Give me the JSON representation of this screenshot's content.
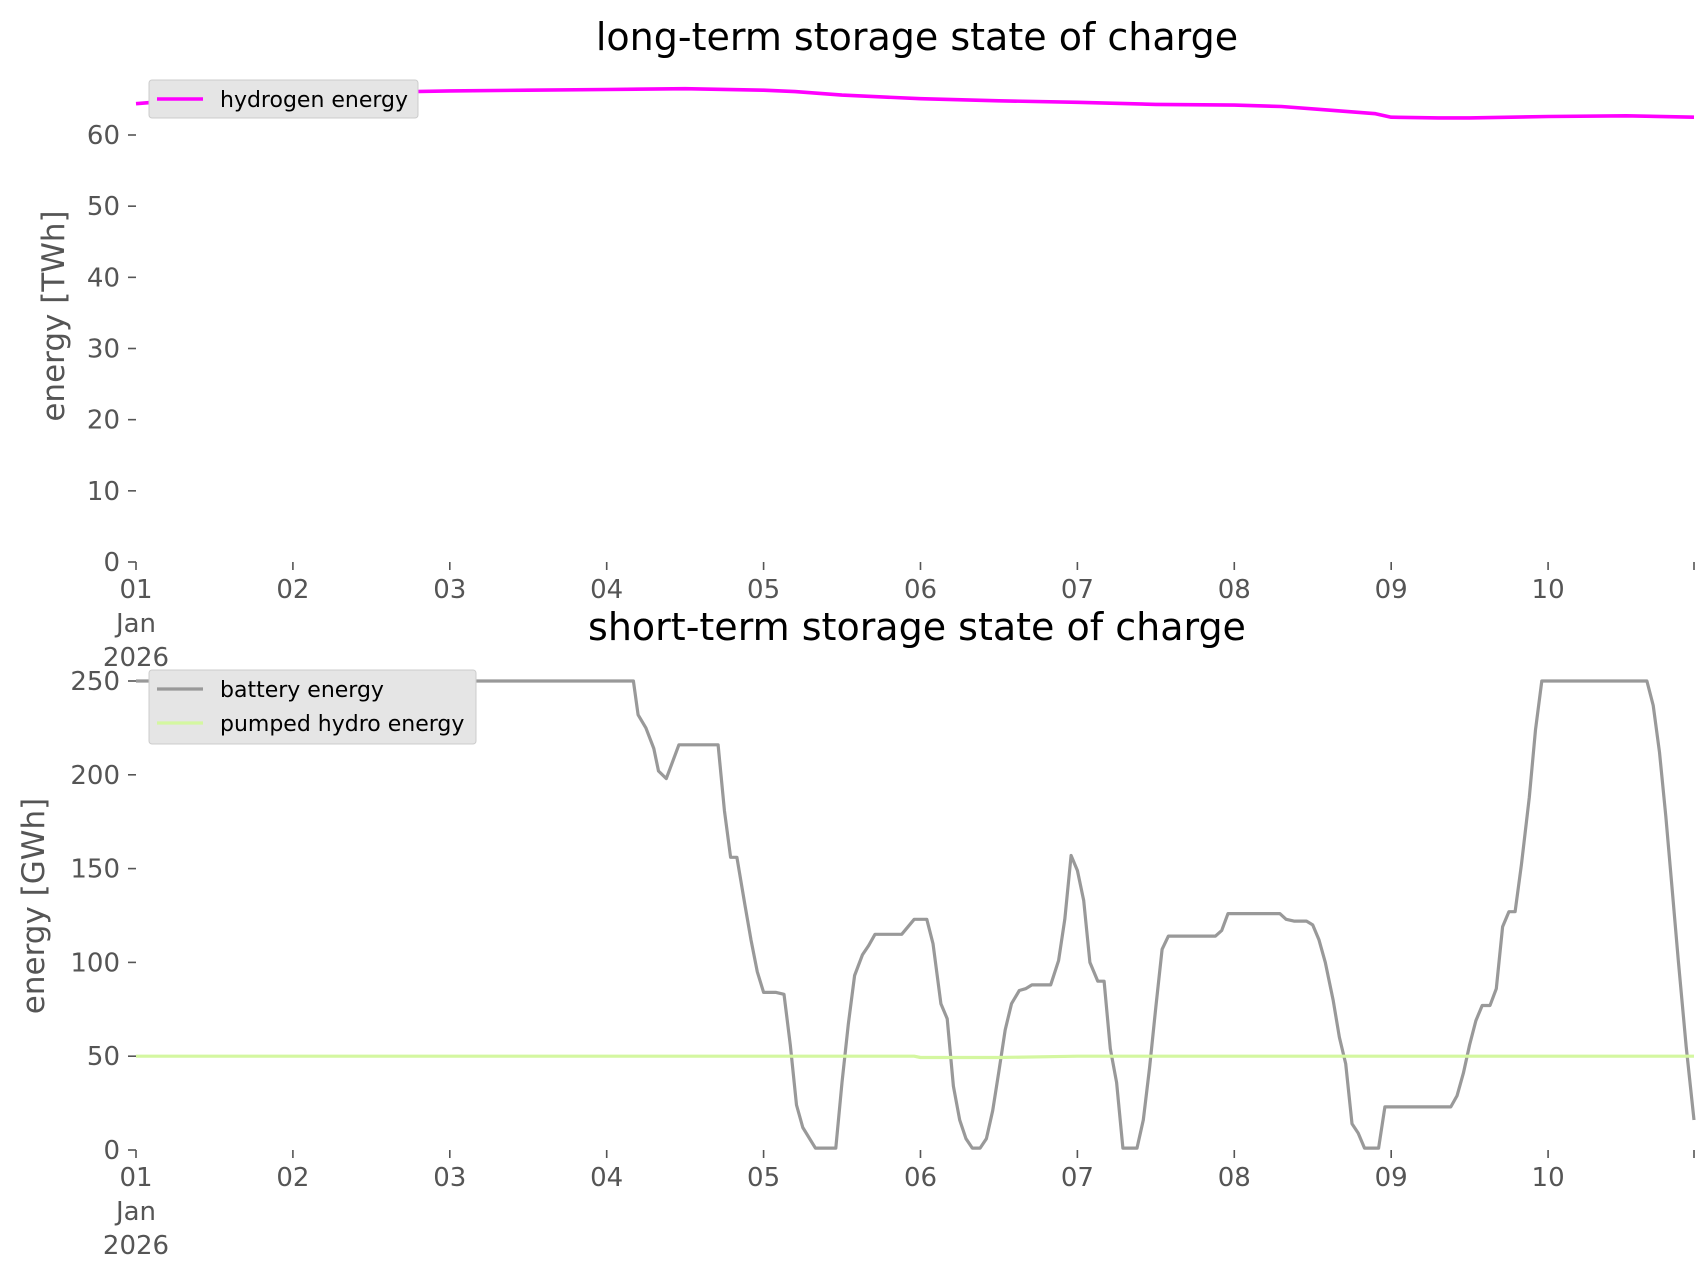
{
  "chart_data": [
    {
      "type": "line",
      "title": "long-term storage state of charge",
      "xlabel": "",
      "ylabel": "energy [TWh]",
      "x_tick_labels": [
        "01\nJan\n2026",
        "02",
        "03",
        "04",
        "05",
        "06",
        "07",
        "08",
        "09",
        "10"
      ],
      "x_range_days": [
        0,
        9.93
      ],
      "ylim": [
        0,
        68
      ],
      "y_ticks": [
        0,
        10,
        20,
        30,
        40,
        50,
        60
      ],
      "grid": false,
      "legend_position": "top-left",
      "series": [
        {
          "name": "hydrogen energy",
          "color": "#ff00ff",
          "points": [
            [
              0,
              64.4
            ],
            [
              0.5,
              65.3
            ],
            [
              1,
              65.8
            ],
            [
              1.5,
              66.0
            ],
            [
              2,
              66.2
            ],
            [
              2.5,
              66.3
            ],
            [
              3,
              66.4
            ],
            [
              3.5,
              66.5
            ],
            [
              4,
              66.3
            ],
            [
              4.2,
              66.1
            ],
            [
              4.5,
              65.6
            ],
            [
              5,
              65.1
            ],
            [
              5.5,
              64.8
            ],
            [
              6,
              64.6
            ],
            [
              6.5,
              64.3
            ],
            [
              7,
              64.2
            ],
            [
              7.3,
              64.0
            ],
            [
              7.6,
              63.5
            ],
            [
              7.9,
              63.0
            ],
            [
              8.0,
              62.5
            ],
            [
              8.3,
              62.4
            ],
            [
              8.5,
              62.4
            ],
            [
              9,
              62.6
            ],
            [
              9.5,
              62.7
            ],
            [
              9.93,
              62.5
            ]
          ]
        }
      ]
    },
    {
      "type": "line",
      "title": "short-term storage state of charge",
      "xlabel": "",
      "ylabel": "energy [GWh]",
      "x_tick_labels": [
        "01\nJan\n2026",
        "02",
        "03",
        "04",
        "05",
        "06",
        "07",
        "08",
        "09",
        "10"
      ],
      "x_range_days": [
        0,
        9.93
      ],
      "ylim": [
        0,
        260
      ],
      "y_ticks": [
        0,
        50,
        100,
        150,
        200,
        250
      ],
      "grid": false,
      "legend_position": "top-left",
      "series": [
        {
          "name": "battery energy",
          "color": "#999999",
          "points": [
            [
              0,
              250
            ],
            [
              3.17,
              250
            ],
            [
              3.2,
              232
            ],
            [
              3.25,
              225
            ],
            [
              3.3,
              214
            ],
            [
              3.33,
              202
            ],
            [
              3.38,
              198
            ],
            [
              3.46,
              216
            ],
            [
              3.71,
              216
            ],
            [
              3.75,
              181
            ],
            [
              3.79,
              156
            ],
            [
              3.83,
              156
            ],
            [
              3.88,
              131
            ],
            [
              3.92,
              112
            ],
            [
              3.96,
              95
            ],
            [
              4.0,
              84
            ],
            [
              4.08,
              84
            ],
            [
              4.13,
              83
            ],
            [
              4.17,
              56
            ],
            [
              4.21,
              24
            ],
            [
              4.25,
              12
            ],
            [
              4.33,
              1
            ],
            [
              4.46,
              1
            ],
            [
              4.5,
              36
            ],
            [
              4.54,
              67
            ],
            [
              4.58,
              93
            ],
            [
              4.63,
              104
            ],
            [
              4.67,
              109
            ],
            [
              4.71,
              115
            ],
            [
              4.88,
              115
            ],
            [
              4.96,
              123
            ],
            [
              5.04,
              123
            ],
            [
              5.08,
              110
            ],
            [
              5.13,
              78
            ],
            [
              5.17,
              70
            ],
            [
              5.21,
              34
            ],
            [
              5.25,
              16
            ],
            [
              5.29,
              6
            ],
            [
              5.33,
              1
            ],
            [
              5.38,
              1
            ],
            [
              5.42,
              6
            ],
            [
              5.46,
              21
            ],
            [
              5.5,
              42
            ],
            [
              5.54,
              64
            ],
            [
              5.58,
              78
            ],
            [
              5.63,
              85
            ],
            [
              5.67,
              86
            ],
            [
              5.71,
              88
            ],
            [
              5.83,
              88
            ],
            [
              5.88,
              101
            ],
            [
              5.92,
              123
            ],
            [
              5.96,
              157
            ],
            [
              6.0,
              149
            ],
            [
              6.04,
              133
            ],
            [
              6.08,
              100
            ],
            [
              6.13,
              90
            ],
            [
              6.17,
              90
            ],
            [
              6.21,
              54
            ],
            [
              6.25,
              36
            ],
            [
              6.29,
              1
            ],
            [
              6.38,
              1
            ],
            [
              6.42,
              16
            ],
            [
              6.46,
              44
            ],
            [
              6.5,
              76
            ],
            [
              6.54,
              107
            ],
            [
              6.58,
              114
            ],
            [
              6.88,
              114
            ],
            [
              6.92,
              117
            ],
            [
              6.96,
              126
            ],
            [
              7.29,
              126
            ],
            [
              7.33,
              123
            ],
            [
              7.38,
              122
            ],
            [
              7.46,
              122
            ],
            [
              7.5,
              120
            ],
            [
              7.54,
              112
            ],
            [
              7.58,
              100
            ],
            [
              7.63,
              80
            ],
            [
              7.67,
              60
            ],
            [
              7.71,
              46
            ],
            [
              7.75,
              14
            ],
            [
              7.79,
              9
            ],
            [
              7.83,
              1
            ],
            [
              7.92,
              1
            ],
            [
              7.96,
              23
            ],
            [
              8.38,
              23
            ],
            [
              8.42,
              29
            ],
            [
              8.46,
              41
            ],
            [
              8.5,
              56
            ],
            [
              8.54,
              69
            ],
            [
              8.58,
              77
            ],
            [
              8.63,
              77
            ],
            [
              8.67,
              86
            ],
            [
              8.71,
              119
            ],
            [
              8.75,
              127
            ],
            [
              8.79,
              127
            ],
            [
              8.83,
              152
            ],
            [
              8.88,
              188
            ],
            [
              8.92,
              224
            ],
            [
              8.96,
              250
            ],
            [
              9.63,
              250
            ],
            [
              9.67,
              237
            ],
            [
              9.71,
              212
            ],
            [
              9.75,
              178
            ],
            [
              9.79,
              140
            ],
            [
              9.83,
              101
            ],
            [
              9.88,
              55
            ],
            [
              9.93,
              16
            ]
          ]
        },
        {
          "name": "pumped hydro energy",
          "color": "#d4f7a0",
          "points": [
            [
              0,
              50
            ],
            [
              4.96,
              50
            ],
            [
              5.0,
              49.3
            ],
            [
              5.5,
              49.3
            ],
            [
              6.0,
              50
            ],
            [
              9.93,
              50
            ]
          ]
        }
      ]
    }
  ]
}
